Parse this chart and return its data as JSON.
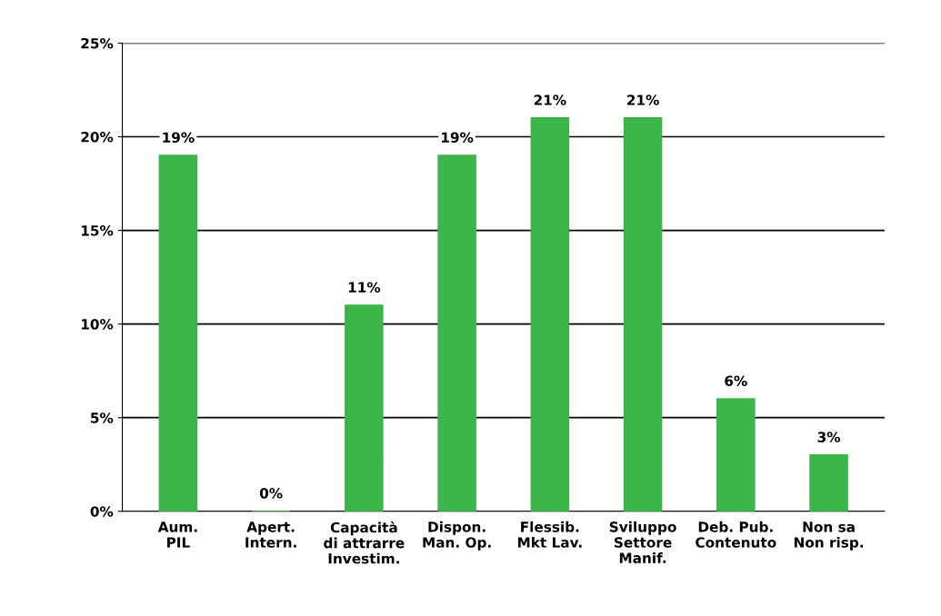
{
  "chart_data": {
    "type": "bar",
    "categories": [
      "Aum.\nPIL",
      "Apert.\nIntern.",
      "Capacità\ndi attrarre\nInvestim.",
      "Dispon.\nMan. Op.",
      "Flessib.\nMkt Lav.",
      "Sviluppo\nSettore\nManif.",
      "Deb. Pub.\nContenuto",
      "Non sa\nNon risp."
    ],
    "values": [
      19,
      0,
      11,
      19,
      21,
      21,
      6,
      3
    ],
    "color": "#3cb54a",
    "ylim": [
      0,
      25
    ],
    "yticks": [
      {
        "value": 0,
        "label": "0%"
      },
      {
        "value": 5,
        "label": "5%"
      },
      {
        "value": 10,
        "label": "10%"
      },
      {
        "value": 15,
        "label": "15%"
      },
      {
        "value": 20,
        "label": "20%"
      },
      {
        "value": 25,
        "label": "25%"
      }
    ],
    "value_labels": [
      "19%",
      "0%",
      "11%",
      "19%",
      "21%",
      "21%",
      "6%",
      "3%"
    ],
    "grid": "y",
    "legend": false
  }
}
